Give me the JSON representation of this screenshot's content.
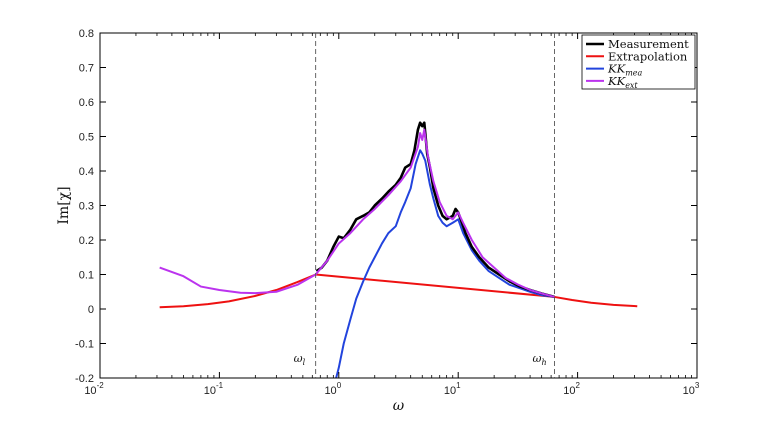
{
  "chart_data": {
    "type": "line",
    "xscale": "log",
    "xlim": [
      0.01,
      1000
    ],
    "ylim": [
      -0.2,
      0.8
    ],
    "xlabel": "ω",
    "ylabel": "Im[χ]",
    "x_ticks": [
      {
        "base": "10",
        "exp": "-2"
      },
      {
        "base": "10",
        "exp": "-1"
      },
      {
        "base": "10",
        "exp": "0"
      },
      {
        "base": "10",
        "exp": "1"
      },
      {
        "base": "10",
        "exp": "2"
      },
      {
        "base": "10",
        "exp": "3"
      }
    ],
    "y_ticks": [
      "-0.2",
      "-0.1",
      "0",
      "0.1",
      "0.2",
      "0.3",
      "0.4",
      "0.5",
      "0.6",
      "0.7",
      "0.8"
    ],
    "legend_position": "top-right",
    "grid": false,
    "vlines": [
      {
        "x": 0.64,
        "label": "ω",
        "sub": "l"
      },
      {
        "x": 64,
        "label": "ω",
        "sub": "h"
      }
    ],
    "series": [
      {
        "name": "Measurement",
        "color": "#000000",
        "width": 2.6,
        "x": [
          0.65,
          0.72,
          0.8,
          0.9,
          1.0,
          1.1,
          1.25,
          1.4,
          1.6,
          1.8,
          2.0,
          2.3,
          2.6,
          3.0,
          3.3,
          3.6,
          4.0,
          4.3,
          4.6,
          4.8,
          5.0,
          5.2,
          5.5,
          5.8,
          6.2,
          6.8,
          7.4,
          8.0,
          9.0,
          9.5,
          10.0,
          10.5,
          11.5,
          13,
          15,
          18,
          22,
          27,
          33,
          40,
          50,
          64
        ],
        "y": [
          0.11,
          0.12,
          0.14,
          0.18,
          0.21,
          0.205,
          0.23,
          0.26,
          0.27,
          0.28,
          0.3,
          0.32,
          0.34,
          0.36,
          0.38,
          0.41,
          0.42,
          0.46,
          0.52,
          0.54,
          0.53,
          0.54,
          0.45,
          0.41,
          0.35,
          0.3,
          0.27,
          0.26,
          0.27,
          0.29,
          0.28,
          0.26,
          0.22,
          0.18,
          0.15,
          0.12,
          0.1,
          0.08,
          0.065,
          0.055,
          0.045,
          0.035
        ]
      },
      {
        "name": "Extrapolation",
        "color": "#ee1111",
        "width": 2,
        "x": [
          0.0316,
          0.05,
          0.08,
          0.12,
          0.2,
          0.3,
          0.45,
          0.64,
          64,
          90,
          130,
          200,
          316
        ],
        "y": [
          0.005,
          0.008,
          0.014,
          0.022,
          0.038,
          0.055,
          0.078,
          0.1,
          0.035,
          0.026,
          0.018,
          0.012,
          0.008
        ]
      },
      {
        "name": "KK",
        "sub": "mea",
        "color": "#2244dd",
        "width": 2,
        "x": [
          0.95,
          1.0,
          1.1,
          1.25,
          1.4,
          1.6,
          1.8,
          2.0,
          2.3,
          2.6,
          3.0,
          3.3,
          3.6,
          4.0,
          4.4,
          4.8,
          5.0,
          5.3,
          5.8,
          6.2,
          6.8,
          7.4,
          8.0,
          9.0,
          10.0,
          11,
          13,
          15,
          18,
          22,
          27,
          33,
          40,
          50,
          64
        ],
        "y": [
          -0.2,
          -0.17,
          -0.1,
          -0.03,
          0.03,
          0.08,
          0.12,
          0.15,
          0.19,
          0.22,
          0.24,
          0.28,
          0.31,
          0.35,
          0.42,
          0.46,
          0.45,
          0.43,
          0.36,
          0.32,
          0.27,
          0.25,
          0.24,
          0.25,
          0.26,
          0.22,
          0.17,
          0.14,
          0.11,
          0.09,
          0.07,
          0.06,
          0.05,
          0.04,
          0.035
        ]
      },
      {
        "name": "KK",
        "sub": "ext",
        "color": "#bb33ee",
        "width": 2,
        "x": [
          0.0316,
          0.05,
          0.07,
          0.1,
          0.15,
          0.2,
          0.3,
          0.45,
          0.64,
          0.8,
          1.0,
          1.25,
          1.6,
          2.0,
          2.6,
          3.3,
          4.0,
          4.6,
          4.8,
          5.0,
          5.2,
          5.6,
          6.2,
          7.0,
          8.0,
          9.0,
          10.0,
          11,
          13,
          16,
          20,
          25,
          32,
          40,
          50,
          64
        ],
        "y": [
          0.12,
          0.095,
          0.065,
          0.055,
          0.047,
          0.046,
          0.05,
          0.07,
          0.1,
          0.14,
          0.19,
          0.22,
          0.26,
          0.29,
          0.33,
          0.37,
          0.41,
          0.47,
          0.51,
          0.49,
          0.52,
          0.44,
          0.37,
          0.31,
          0.27,
          0.26,
          0.28,
          0.25,
          0.2,
          0.15,
          0.12,
          0.09,
          0.07,
          0.055,
          0.045,
          0.035
        ]
      }
    ]
  }
}
